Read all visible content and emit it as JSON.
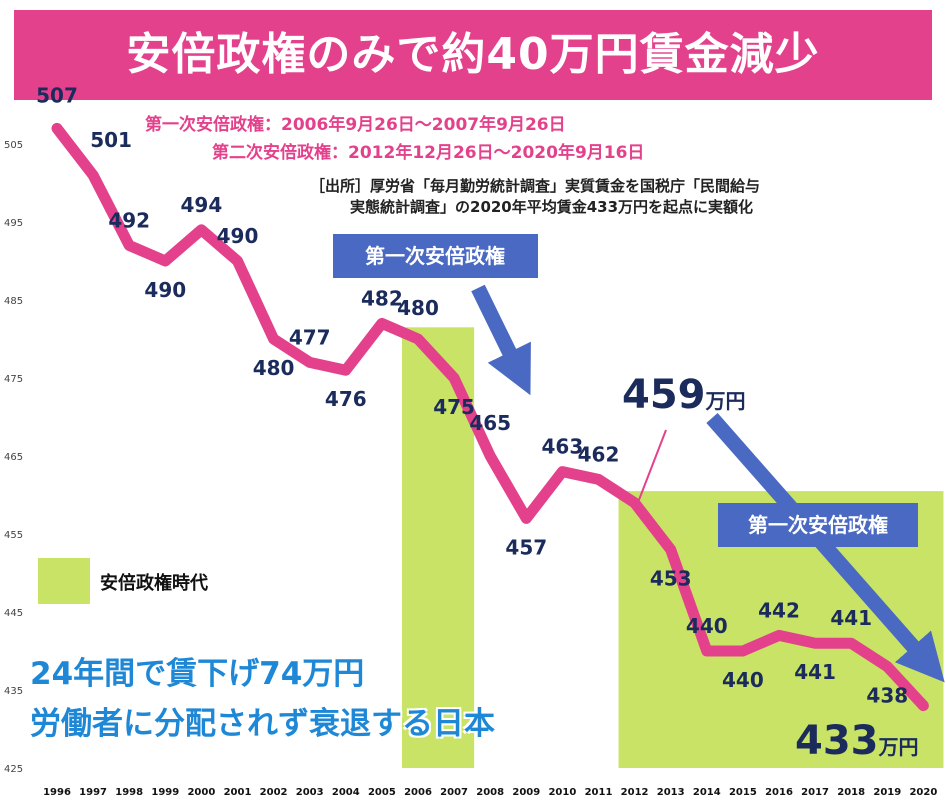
{
  "header": {
    "title": "安倍政権のみで約40万円賃金減少"
  },
  "periods": {
    "first": "第一次安倍政権：2006年9月26日～2007年9月26日",
    "second": "第二次安倍政権：2012年12月26日～2020年9月16日"
  },
  "source": {
    "line1": "［出所］厚労省「毎月勤労統計調査」実質賃金を国税庁「民間給与",
    "line2": "実態統計調査」の2020年平均賃金433万円を起点に実額化"
  },
  "callouts": {
    "arrow1_label": "第一次安倍政権",
    "arrow2_label": "第一次安倍政権",
    "peak_value": "459",
    "peak_unit": "万円",
    "end_value": "433",
    "end_unit": "万円"
  },
  "legend": {
    "label": "安倍政権時代",
    "color": "#c8e365"
  },
  "messages": {
    "line1": "24年間で賃下げ74万円",
    "line2": "労働者に分配されず衰退する日本"
  },
  "colors": {
    "banner": "#e4418c",
    "line": "#e4418c",
    "shade": "#c8e365",
    "arrow": "#4a69c2",
    "label": "#1a2b5c"
  },
  "chart_data": {
    "type": "line",
    "x": [
      "1996",
      "1997",
      "1998",
      "1999",
      "2000",
      "2001",
      "2002",
      "2003",
      "2004",
      "2005",
      "2006",
      "2007",
      "2008",
      "2009",
      "2010",
      "2011",
      "2012",
      "2013",
      "2014",
      "2015",
      "2016",
      "2017",
      "2018",
      "2019",
      "2020"
    ],
    "values": [
      507,
      501,
      492,
      490,
      494,
      490,
      480,
      477,
      476,
      482,
      480,
      475,
      465,
      457,
      463,
      462,
      459,
      453,
      440,
      440,
      442,
      441,
      441,
      438,
      433
    ],
    "data_labels": [
      "507",
      "501",
      "492",
      "490",
      "494",
      "490",
      "480",
      "477",
      "476",
      "482",
      "480",
      "475",
      "465",
      "457",
      "463",
      "462",
      "",
      "453",
      "440",
      "440",
      "442",
      "441",
      "441",
      "438",
      ""
    ],
    "yticks": [
      "505",
      "495",
      "485",
      "475",
      "465",
      "455",
      "445",
      "435",
      "425"
    ],
    "ylim": [
      425,
      508
    ],
    "shaded_periods": [
      [
        "2006",
        "2007"
      ],
      [
        "2012",
        "2020"
      ]
    ],
    "legend": "安倍政権時代"
  }
}
